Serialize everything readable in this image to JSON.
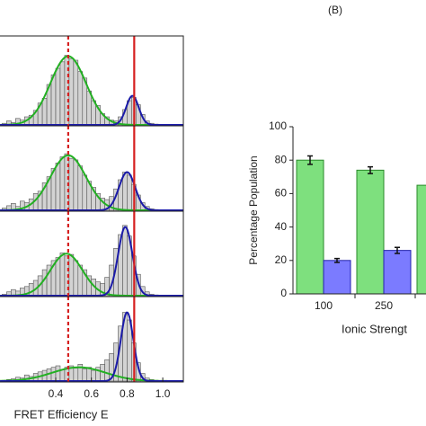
{
  "chart_data": [
    {
      "type": "histogram",
      "xlim": [
        0.088,
        1.115
      ],
      "ylim": [
        0,
        1
      ],
      "bins": [
        0.1,
        0.125,
        0.15,
        0.175,
        0.2,
        0.225,
        0.25,
        0.275,
        0.3,
        0.325,
        0.35,
        0.375,
        0.4,
        0.425,
        0.45,
        0.475,
        0.5,
        0.525,
        0.55,
        0.575,
        0.6,
        0.625,
        0.65,
        0.675,
        0.7,
        0.725,
        0.75,
        0.775,
        0.8,
        0.825,
        0.85,
        0.875,
        0.9,
        0.925,
        0.95,
        0.975,
        1.0
      ],
      "counts": [
        0.02,
        0.05,
        0.03,
        0.08,
        0.06,
        0.1,
        0.12,
        0.18,
        0.27,
        0.33,
        0.5,
        0.62,
        0.7,
        0.78,
        0.86,
        0.82,
        0.8,
        0.66,
        0.58,
        0.42,
        0.3,
        0.24,
        0.14,
        0.1,
        0.06,
        0.05,
        0.1,
        0.19,
        0.3,
        0.34,
        0.25,
        0.13,
        0.05,
        0.02,
        0.01,
        0
      ],
      "fits": [
        {
          "color": "#22b022",
          "mean": 0.47,
          "sd": 0.1,
          "peak": 0.85
        },
        {
          "color": "#1a1aa8",
          "mean": 0.83,
          "sd": 0.035,
          "peak": 0.36
        }
      ],
      "reference_lines": [
        {
          "value": 0.47,
          "color": "#d62020",
          "style": "dashed"
        },
        {
          "value": 0.84,
          "color": "#d62020",
          "style": "solid"
        }
      ]
    },
    {
      "type": "histogram",
      "xlim": [
        0.088,
        1.115
      ],
      "ylim": [
        0,
        1
      ],
      "bins": [
        0.1,
        0.125,
        0.15,
        0.175,
        0.2,
        0.225,
        0.25,
        0.275,
        0.3,
        0.325,
        0.35,
        0.375,
        0.4,
        0.425,
        0.45,
        0.475,
        0.5,
        0.525,
        0.55,
        0.575,
        0.6,
        0.625,
        0.65,
        0.675,
        0.7,
        0.725,
        0.75,
        0.775,
        0.8,
        0.825,
        0.85,
        0.875,
        0.9,
        0.925,
        0.95,
        0.975,
        1.0
      ],
      "counts": [
        0.03,
        0.06,
        0.09,
        0.05,
        0.12,
        0.1,
        0.15,
        0.22,
        0.25,
        0.36,
        0.44,
        0.55,
        0.62,
        0.7,
        0.74,
        0.68,
        0.66,
        0.58,
        0.46,
        0.38,
        0.3,
        0.22,
        0.16,
        0.14,
        0.18,
        0.28,
        0.4,
        0.5,
        0.46,
        0.34,
        0.2,
        0.1,
        0.05,
        0.02,
        0.01,
        0
      ],
      "fits": [
        {
          "color": "#22b022",
          "mean": 0.47,
          "sd": 0.1,
          "peak": 0.72
        },
        {
          "color": "#1a1aa8",
          "mean": 0.8,
          "sd": 0.045,
          "peak": 0.5
        }
      ],
      "reference_lines": [
        {
          "value": 0.47,
          "color": "#d62020",
          "style": "dashed"
        },
        {
          "value": 0.84,
          "color": "#d62020",
          "style": "solid"
        }
      ]
    },
    {
      "type": "histogram",
      "xlim": [
        0.088,
        1.115
      ],
      "ylim": [
        0,
        1
      ],
      "bins": [
        0.1,
        0.125,
        0.15,
        0.175,
        0.2,
        0.225,
        0.25,
        0.275,
        0.3,
        0.325,
        0.35,
        0.375,
        0.4,
        0.425,
        0.45,
        0.475,
        0.5,
        0.525,
        0.55,
        0.575,
        0.6,
        0.625,
        0.65,
        0.675,
        0.7,
        0.725,
        0.75,
        0.775,
        0.8,
        0.825,
        0.85,
        0.875,
        0.9,
        0.925,
        0.95,
        0.975,
        1.0
      ],
      "counts": [
        0.02,
        0.05,
        0.08,
        0.06,
        0.1,
        0.12,
        0.16,
        0.2,
        0.26,
        0.34,
        0.4,
        0.46,
        0.5,
        0.56,
        0.52,
        0.54,
        0.46,
        0.4,
        0.34,
        0.26,
        0.22,
        0.18,
        0.16,
        0.24,
        0.4,
        0.62,
        0.8,
        0.92,
        0.78,
        0.52,
        0.28,
        0.12,
        0.05,
        0.02,
        0.01,
        0
      ],
      "fits": [
        {
          "color": "#22b022",
          "mean": 0.46,
          "sd": 0.09,
          "peak": 0.55
        },
        {
          "color": "#1a1aa8",
          "mean": 0.79,
          "sd": 0.04,
          "peak": 0.9
        }
      ],
      "reference_lines": [
        {
          "value": 0.47,
          "color": "#d62020",
          "style": "dashed"
        },
        {
          "value": 0.84,
          "color": "#d62020",
          "style": "solid"
        }
      ]
    },
    {
      "type": "histogram",
      "xlim": [
        0.088,
        1.115
      ],
      "ylim": [
        0,
        1
      ],
      "bins": [
        0.1,
        0.125,
        0.15,
        0.175,
        0.2,
        0.225,
        0.25,
        0.275,
        0.3,
        0.325,
        0.35,
        0.375,
        0.4,
        0.425,
        0.45,
        0.475,
        0.5,
        0.525,
        0.55,
        0.575,
        0.6,
        0.625,
        0.65,
        0.675,
        0.7,
        0.725,
        0.75,
        0.775,
        0.8,
        0.825,
        0.85,
        0.875,
        0.9,
        0.925,
        0.95,
        0.975,
        1.0
      ],
      "counts": [
        0.01,
        0.02,
        0.03,
        0.05,
        0.04,
        0.08,
        0.06,
        0.1,
        0.12,
        0.14,
        0.16,
        0.18,
        0.2,
        0.15,
        0.18,
        0.2,
        0.17,
        0.22,
        0.16,
        0.18,
        0.14,
        0.18,
        0.22,
        0.28,
        0.36,
        0.5,
        0.72,
        0.9,
        0.8,
        0.5,
        0.24,
        0.1,
        0.04,
        0.02,
        0.01,
        0
      ],
      "fits": [
        {
          "color": "#22b022",
          "mean": 0.53,
          "sd": 0.15,
          "peak": 0.18
        },
        {
          "color": "#1a1aa8",
          "mean": 0.8,
          "sd": 0.035,
          "peak": 0.9
        }
      ],
      "reference_lines": [
        {
          "value": 0.47,
          "color": "#d62020",
          "style": "dashed"
        },
        {
          "value": 0.84,
          "color": "#d62020",
          "style": "solid"
        }
      ],
      "xticks": [
        0.4,
        0.6,
        0.8,
        {
          "value": 1,
          "label": "1.0"
        }
      ],
      "xlabel": "FRET Efficiency E"
    },
    {
      "type": "bar",
      "title": "(B)",
      "ylabel": "Percentage Population",
      "xlabel": "Ionic Strengt",
      "categories": [
        "100",
        "250",
        null
      ],
      "ylim": [
        0,
        100
      ],
      "yticks": [
        0,
        20,
        40,
        60,
        80,
        100
      ],
      "series": [
        {
          "color": "#7ee07e",
          "values": [
            80,
            74,
            65
          ],
          "errors": [
            2.5,
            2,
            null
          ]
        },
        {
          "color": "#7b7bff",
          "values": [
            20,
            26,
            null
          ],
          "errors": [
            1.2,
            1.8,
            null
          ]
        }
      ]
    }
  ]
}
